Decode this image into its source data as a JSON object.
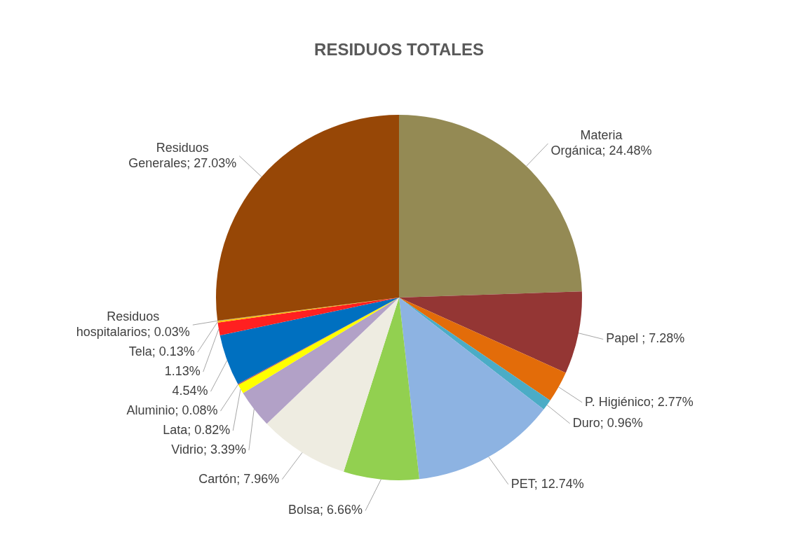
{
  "chart_data": {
    "type": "pie",
    "title": "RESIDUOS TOTALES",
    "categories": [
      "Materia Orgánica",
      "Papel ",
      "P. Higiénico",
      "Duro",
      "PET",
      "Bolsa",
      "Cartón",
      "Vidrio",
      "Lata",
      "Aluminio",
      null,
      null,
      "Tela",
      "Residuos hospitalarios",
      "Residuos Generales"
    ],
    "values": [
      24.48,
      7.28,
      2.77,
      0.96,
      12.74,
      6.66,
      7.96,
      3.39,
      0.82,
      0.08,
      4.54,
      1.13,
      0.13,
      0.03,
      27.03
    ],
    "value_labels": [
      "24.48%",
      "7.28%",
      "2.77%",
      "0.96%",
      "12.74%",
      "6.66%",
      "7.96%",
      "3.39%",
      "0.82%",
      "0.08%",
      "4.54%",
      "1.13%",
      "0.13%",
      "0.03%",
      "27.03%"
    ],
    "colors": [
      "#948a54",
      "#943634",
      "#e36c09",
      "#4bacc6",
      "#8db3e2",
      "#92d050",
      "#eeece1",
      "#b2a1c7",
      "#ffff00",
      "#c0504d",
      "#0070c0",
      "#ff2020",
      "#ffc000",
      "#7f7f7f",
      "#974706"
    ],
    "legend": false
  }
}
